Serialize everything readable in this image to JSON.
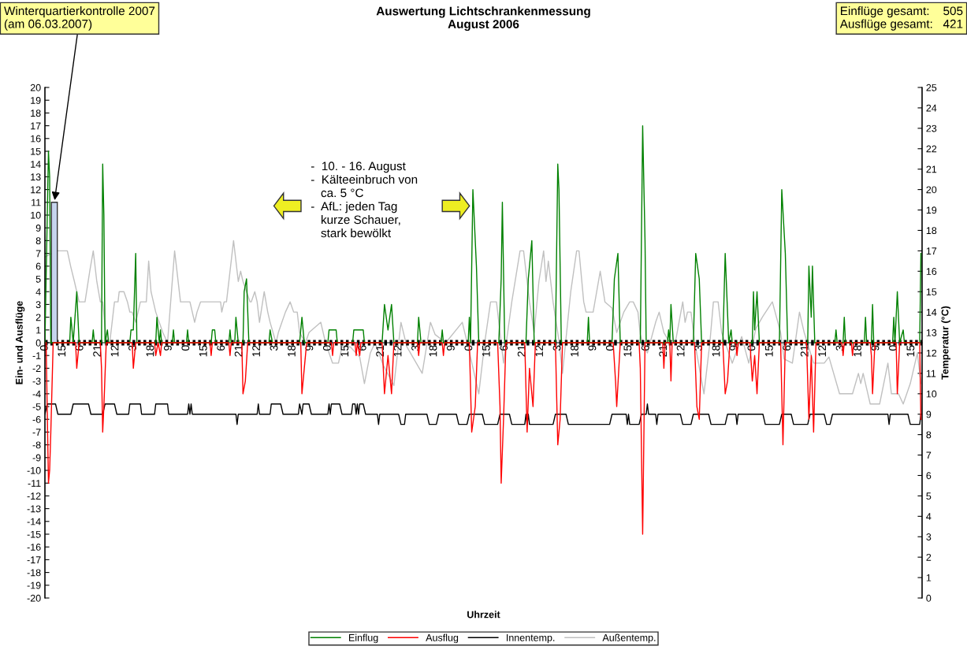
{
  "chart_data": {
    "type": "line",
    "title": "Auswertung Lichtschrankenmessung\nAugust 2006",
    "xlabel": "Uhrzeit",
    "ylabel": "Ein- und Ausflüge",
    "y2label": "Temperatur (°C)",
    "annotations": [
      {
        "text": "Winterquartierkontrolle 2007\n(am 06.03.2007)",
        "x": "2006-08-01T08:00",
        "y": 11
      },
      "Einflüge gesamt:    505\nAusflüge gesamt:   421",
      "-  10. - 16. August\n-  Kälteeinbruch von\n   ca. 5 °C\n-  AfL: jeden Tag\n   kurze Schauer,\n   stark bewölkt"
    ],
    "series": [
      {
        "name": "Einflug",
        "color": "#008000",
        "x": [
          "2006-08-01T00:00",
          "2006-08-01T03:00",
          "2006-08-01T04:00",
          "2006-08-01T05:00",
          "2006-08-01T21:00",
          "2006-08-01T22:00",
          "2006-08-02T00:00",
          "2006-08-02T03:00",
          "2006-08-02T05:00",
          "2006-08-02T16:00",
          "2006-08-02T17:00",
          "2006-08-02T18:00",
          "2006-08-03T00:00",
          "2006-08-03T01:00",
          "2006-08-03T02:00",
          "2006-08-03T03:00",
          "2006-08-03T05:00",
          "2006-08-03T06:00",
          "2006-08-04T00:00",
          "2006-08-04T01:00",
          "2006-08-04T03:00",
          "2006-08-04T05:00",
          "2006-08-04T06:00",
          "2006-08-04T22:00",
          "2006-08-04T23:00",
          "2006-08-05T01:00",
          "2006-08-05T02:00",
          "2006-08-05T03:00",
          "2006-08-05T12:00",
          "2006-08-05T13:00",
          "2006-08-05T14:00",
          "2006-08-06T00:00",
          "2006-08-06T01:00",
          "2006-08-06T02:00",
          "2006-08-06T21:00",
          "2006-08-06T22:00",
          "2006-08-07T00:00",
          "2006-08-07T01:00",
          "2006-08-07T12:00",
          "2006-08-07T13:00",
          "2006-08-07T14:00",
          "2006-08-07T17:00",
          "2006-08-07T18:00",
          "2006-08-07T20:00",
          "2006-08-08T00:00",
          "2006-08-08T01:00",
          "2006-08-08T03:00",
          "2006-08-08T05:00",
          "2006-08-08T22:00",
          "2006-08-08T23:00",
          "2006-08-09T01:00",
          "2006-08-10T00:00",
          "2006-08-10T02:00",
          "2006-08-10T04:00",
          "2006-08-11T00:00",
          "2006-08-11T01:00",
          "2006-08-11T04:00",
          "2006-08-11T07:00",
          "2006-08-11T08:00",
          "2006-08-11T21:00",
          "2006-08-11T22:00",
          "2006-08-12T02:00",
          "2006-08-12T06:00",
          "2006-08-12T07:00",
          "2006-08-12T22:00",
          "2006-08-13T00:00",
          "2006-08-13T03:00",
          "2006-08-13T06:00",
          "2006-08-13T08:00",
          "2006-08-14T04:00",
          "2006-08-14T05:00",
          "2006-08-14T07:00",
          "2006-08-15T00:00",
          "2006-08-15T01:00",
          "2006-08-15T02:00",
          "2006-08-15T23:00",
          "2006-08-16T00:00",
          "2006-08-16T01:00",
          "2006-08-16T03:00",
          "2006-08-16T06:00",
          "2006-08-16T08:00",
          "2006-08-17T01:00",
          "2006-08-17T03:00",
          "2006-08-17T04:00",
          "2006-08-17T06:00",
          "2006-08-18T00:00",
          "2006-08-18T02:00",
          "2006-08-18T05:00",
          "2006-08-18T07:00",
          "2006-08-19T01:00",
          "2006-08-19T03:00",
          "2006-08-19T04:00",
          "2006-08-19T06:00",
          "2006-08-20T04:00",
          "2006-08-20T05:00",
          "2006-08-20T06:00",
          "2006-08-21T01:00",
          "2006-08-21T03:00",
          "2006-08-21T06:00",
          "2006-08-21T08:00",
          "2006-08-22T01:00",
          "2006-08-22T03:00",
          "2006-08-22T05:00",
          "2006-08-22T06:00",
          "2006-08-23T00:00",
          "2006-08-23T01:00",
          "2006-08-23T02:00",
          "2006-08-23T03:00",
          "2006-08-23T05:00",
          "2006-08-23T22:00",
          "2006-08-24T00:00",
          "2006-08-24T03:00",
          "2006-08-24T05:00",
          "2006-08-24T23:00",
          "2006-08-25T01:00",
          "2006-08-25T04:00",
          "2006-08-25T06:00",
          "2006-08-25T07:00",
          "2006-08-26T00:00",
          "2006-08-26T01:00",
          "2006-08-26T02:00",
          "2006-08-26T04:00",
          "2006-08-26T06:00",
          "2006-08-26T23:00",
          "2006-08-27T01:00",
          "2006-08-27T04:00",
          "2006-08-27T06:00",
          "2006-08-27T23:00",
          "2006-08-28T00:00",
          "2006-08-28T02:00",
          "2006-08-28T03:00",
          "2006-08-28T05:00",
          "2006-08-28T22:00",
          "2006-08-28T23:00",
          "2006-08-29T00:00",
          "2006-08-29T05:00",
          "2006-08-29T06:00",
          "2006-08-29T07:00",
          "2006-08-29T23:00",
          "2006-08-30T00:00",
          "2006-08-30T01:00",
          "2006-08-30T05:00",
          "2006-08-30T06:00",
          "2006-08-30T07:00",
          "2006-08-30T23:00",
          "2006-08-31T00:00",
          "2006-08-31T01:00",
          "2006-08-31T03:00",
          "2006-08-31T05:00",
          "2006-08-31T08:00",
          "2006-08-31T09:00",
          "2006-08-31T22:00",
          "2006-08-31T23:00"
        ],
        "values": [
          0,
          15,
          13,
          0,
          0,
          2,
          0,
          4,
          0,
          0,
          1,
          0,
          0,
          14,
          10,
          0,
          1,
          0,
          0,
          1,
          1,
          7,
          0,
          0,
          2,
          0,
          1,
          0,
          0,
          1,
          0,
          0,
          1,
          0,
          0,
          1,
          1,
          0,
          0,
          1,
          0,
          0,
          2,
          0,
          0,
          4,
          5,
          0,
          0,
          1,
          0,
          0,
          2,
          0,
          0,
          1,
          1,
          1,
          0,
          0,
          1,
          1,
          1,
          0,
          0,
          3,
          1,
          3,
          0,
          0,
          2,
          0,
          0,
          1,
          0,
          0,
          2,
          0,
          12,
          6,
          0,
          0,
          5,
          11,
          0,
          0,
          5,
          8,
          0,
          0,
          14,
          12,
          0,
          0,
          2,
          0,
          0,
          5,
          7,
          0,
          0,
          17,
          8,
          0,
          0,
          1,
          0,
          3,
          0,
          0,
          7,
          5,
          0,
          0,
          7,
          0,
          1,
          0,
          0,
          4,
          1,
          4,
          0,
          0,
          12,
          7,
          0,
          0,
          6,
          2,
          6,
          0,
          0,
          1,
          0,
          0,
          2,
          0,
          0,
          2,
          0,
          0,
          3,
          0,
          0,
          2,
          0,
          4,
          0,
          1,
          0,
          0,
          7
        ]
      },
      {
        "name": "Ausflug",
        "color": "#ff0000",
        "x": [
          "2006-08-01T01:00",
          "2006-08-01T03:00",
          "2006-08-01T04:00",
          "2006-08-01T05:00",
          "2006-08-01T07:00",
          "2006-08-02T02:00",
          "2006-08-02T03:00",
          "2006-08-02T05:00",
          "2006-08-02T23:00",
          "2006-08-03T00:00",
          "2006-08-03T01:00",
          "2006-08-03T02:00",
          "2006-08-03T04:00",
          "2006-08-04T02:00",
          "2006-08-04T03:00",
          "2006-08-04T05:00",
          "2006-08-04T21:00",
          "2006-08-04T22:00",
          "2006-08-05T00:00",
          "2006-08-05T02:00",
          "2006-08-05T03:00",
          "2006-08-06T20:00",
          "2006-08-06T21:00",
          "2006-08-06T22:00",
          "2006-08-07T12:00",
          "2006-08-07T13:00",
          "2006-08-07T14:00",
          "2006-08-07T23:00",
          "2006-08-08T00:00",
          "2006-08-08T02:00",
          "2006-08-08T04:00",
          "2006-08-10T01:00",
          "2006-08-10T02:00",
          "2006-08-10T04:00",
          "2006-08-10T06:00",
          "2006-08-11T03:00",
          "2006-08-11T04:00",
          "2006-08-11T05:00",
          "2006-08-11T23:00",
          "2006-08-12T00:00",
          "2006-08-12T01:00",
          "2006-08-12T03:00",
          "2006-08-12T04:00",
          "2006-08-12T22:00",
          "2006-08-13T00:00",
          "2006-08-13T03:00",
          "2006-08-13T06:00",
          "2006-08-13T08:00",
          "2006-08-14T04:00",
          "2006-08-14T05:00",
          "2006-08-14T06:00",
          "2006-08-15T01:00",
          "2006-08-15T02:00",
          "2006-08-15T03:00",
          "2006-08-16T00:00",
          "2006-08-16T02:00",
          "2006-08-16T05:00",
          "2006-08-16T07:00",
          "2006-08-17T00:00",
          "2006-08-17T02:00",
          "2006-08-17T03:00",
          "2006-08-17T05:00",
          "2006-08-17T07:00",
          "2006-08-17T23:00",
          "2006-08-18T01:00",
          "2006-08-18T03:00",
          "2006-08-18T06:00",
          "2006-08-18T08:00",
          "2006-08-19T01:00",
          "2006-08-19T03:00",
          "2006-08-19T05:00",
          "2006-08-19T07:00",
          "2006-08-21T02:00",
          "2006-08-21T04:00",
          "2006-08-21T05:00",
          "2006-08-21T08:00",
          "2006-08-22T00:00",
          "2006-08-22T01:00",
          "2006-08-22T03:00",
          "2006-08-22T05:00",
          "2006-08-22T20:00",
          "2006-08-22T21:00",
          "2006-08-22T22:00",
          "2006-08-23T02:00",
          "2006-08-23T03:00",
          "2006-08-23T04:00",
          "2006-08-23T23:00",
          "2006-08-24T01:00",
          "2006-08-24T03:00",
          "2006-08-24T05:00",
          "2006-08-24T23:00",
          "2006-08-25T01:00",
          "2006-08-25T03:00",
          "2006-08-25T05:00",
          "2006-08-25T10:00",
          "2006-08-25T11:00",
          "2006-08-25T12:00",
          "2006-08-25T22:00",
          "2006-08-26T00:00",
          "2006-08-26T02:00",
          "2006-08-26T04:00",
          "2006-08-26T06:00",
          "2006-08-27T00:00",
          "2006-08-27T02:00",
          "2006-08-27T04:00",
          "2006-08-27T22:00",
          "2006-08-28T00:00",
          "2006-08-28T02:00",
          "2006-08-28T04:00",
          "2006-08-28T06:00",
          "2006-08-29T04:00",
          "2006-08-29T05:00",
          "2006-08-29T06:00",
          "2006-08-29T12:00",
          "2006-08-29T13:00",
          "2006-08-29T14:00",
          "2006-08-30T04:00",
          "2006-08-30T05:00",
          "2006-08-30T06:00",
          "2006-08-30T08:00",
          "2006-08-31T02:00",
          "2006-08-31T03:00",
          "2006-08-31T05:00",
          "2006-08-31T22:00",
          "2006-08-31T23:00"
        ],
        "values": [
          0,
          -11,
          -10,
          -7,
          0,
          0,
          -2,
          0,
          0,
          -2,
          -7,
          -5,
          0,
          0,
          -2,
          0,
          0,
          -1,
          0,
          -1,
          0,
          0,
          -1,
          0,
          0,
          -1,
          0,
          0,
          -4,
          -3,
          0,
          0,
          -4,
          -2,
          0,
          0,
          -1,
          0,
          0,
          -1,
          0,
          -1,
          0,
          0,
          -4,
          -1,
          -4,
          0,
          0,
          -1,
          0,
          0,
          -1,
          0,
          0,
          -7,
          -5,
          0,
          0,
          -5,
          -11,
          -6,
          0,
          0,
          -7,
          -2,
          -5,
          0,
          0,
          -8,
          -6,
          0,
          0,
          -3,
          -5,
          0,
          0,
          -2,
          -15,
          0,
          0,
          -2,
          0,
          0,
          -3,
          0,
          0,
          -5,
          -6,
          0,
          0,
          -4,
          -3,
          0,
          0,
          -1,
          0,
          0,
          -3,
          -1,
          -4,
          0,
          0,
          -8,
          0,
          0,
          -6,
          -1,
          -7,
          0,
          0,
          -1,
          0,
          0,
          -1,
          0,
          0,
          -1,
          -4,
          0,
          0,
          -4,
          0,
          0,
          -6
        ]
      },
      {
        "name": "Innentemp.",
        "color": "#000000",
        "axis": "y2",
        "x": [
          "2006-08-01T00:00",
          "2006-08-01T02:00",
          "2006-08-01T09:00",
          "2006-08-01T11:00",
          "2006-08-01T22:00",
          "2006-08-02T00:00",
          "2006-08-02T13:00",
          "2006-08-02T15:00",
          "2006-08-03T01:00",
          "2006-08-03T03:00",
          "2006-08-03T11:00",
          "2006-08-03T13:00",
          "2006-08-03T23:00",
          "2006-08-04T00:00",
          "2006-08-04T09:00",
          "2006-08-04T10:00",
          "2006-08-04T21:00",
          "2006-08-04T22:00",
          "2006-08-05T08:00",
          "2006-08-05T09:00",
          "2006-08-06T01:00",
          "2006-08-06T02:00",
          "2006-08-06T03:00",
          "2006-08-06T04:00",
          "2006-08-06T05:00",
          "2006-08-07T18:00",
          "2006-08-07T19:00",
          "2006-08-07T20:00",
          "2006-08-08T12:00",
          "2006-08-08T13:00",
          "2006-08-08T14:00",
          "2006-08-08T23:00",
          "2006-08-09T00:00",
          "2006-08-09T08:00",
          "2006-08-09T10:00",
          "2006-08-09T23:00",
          "2006-08-10T00:00",
          "2006-08-10T02:00",
          "2006-08-10T03:00",
          "2006-08-10T08:00",
          "2006-08-10T10:00",
          "2006-08-11T00:00",
          "2006-08-11T01:00",
          "2006-08-11T02:00",
          "2006-08-11T03:00",
          "2006-08-11T10:00",
          "2006-08-11T12:00",
          "2006-08-11T20:00",
          "2006-08-11T21:00",
          "2006-08-11T23:00",
          "2006-08-12T00:00",
          "2006-08-12T01:00",
          "2006-08-12T02:00",
          "2006-08-12T03:00",
          "2006-08-12T06:00",
          "2006-08-12T08:00",
          "2006-08-12T18:00",
          "2006-08-12T19:00",
          "2006-08-12T20:00",
          "2006-08-13T12:00",
          "2006-08-13T14:00",
          "2006-08-13T17:00",
          "2006-08-13T18:00",
          "2006-08-14T12:00",
          "2006-08-14T14:00",
          "2006-08-14T20:00",
          "2006-08-14T22:00",
          "2006-08-15T13:00",
          "2006-08-15T15:00",
          "2006-08-15T22:00",
          "2006-08-16T00:00",
          "2006-08-16T11:00",
          "2006-08-16T13:00",
          "2006-08-17T00:00",
          "2006-08-17T02:00",
          "2006-08-17T10:00",
          "2006-08-17T12:00",
          "2006-08-17T23:00",
          "2006-08-18T00:00",
          "2006-08-18T01:00",
          "2006-08-18T02:00",
          "2006-08-18T03:00",
          "2006-08-18T23:00",
          "2006-08-19T01:00",
          "2006-08-19T10:00",
          "2006-08-19T12:00",
          "2006-08-20T23:00",
          "2006-08-21T01:00",
          "2006-08-21T13:00",
          "2006-08-21T14:00",
          "2006-08-21T15:00",
          "2006-08-21T16:00",
          "2006-08-22T00:00",
          "2006-08-22T02:00",
          "2006-08-22T06:00",
          "2006-08-22T07:00",
          "2006-08-22T08:00",
          "2006-08-22T14:00",
          "2006-08-22T15:00",
          "2006-08-22T16:00",
          "2006-08-23T11:00",
          "2006-08-23T13:00",
          "2006-08-23T20:00",
          "2006-08-23T22:00",
          "2006-08-24T11:00",
          "2006-08-24T13:00",
          "2006-08-25T01:00",
          "2006-08-25T03:00",
          "2006-08-25T10:00",
          "2006-08-25T11:00",
          "2006-08-25T12:00",
          "2006-08-26T09:00",
          "2006-08-26T11:00",
          "2006-08-26T23:00",
          "2006-08-27T01:00",
          "2006-08-27T09:00",
          "2006-08-27T11:00",
          "2006-08-27T23:00",
          "2006-08-28T01:00",
          "2006-08-28T13:00",
          "2006-08-28T15:00",
          "2006-08-28T18:00",
          "2006-08-28T20:00",
          "2006-08-30T19:00",
          "2006-08-30T20:00",
          "2006-08-30T21:00",
          "2006-08-31T12:00",
          "2006-08-31T14:00",
          "2006-08-31T22:00",
          "2006-08-31T23:00"
        ],
        "values": [
          9,
          9.5,
          9.5,
          9,
          9,
          9.5,
          9.5,
          9,
          9,
          9.5,
          9.5,
          9,
          9,
          9.5,
          9.5,
          9,
          9,
          9.5,
          9.5,
          9,
          9,
          9.5,
          9,
          9.5,
          9,
          9,
          8.5,
          9,
          9,
          9.5,
          9,
          9,
          9.5,
          9.5,
          9,
          9,
          9.5,
          9,
          9.5,
          9.5,
          9,
          9,
          9.5,
          9,
          9.5,
          9.5,
          9,
          9,
          9.5,
          9.5,
          9,
          9.5,
          9,
          9.5,
          9.5,
          9,
          9,
          8.5,
          9,
          9,
          8.5,
          8.5,
          9,
          9,
          8.5,
          8.5,
          9,
          9,
          8.5,
          8.5,
          9,
          9,
          8.5,
          8.5,
          9,
          9,
          8.5,
          8.5,
          9,
          8.5,
          9,
          8.5,
          8.5,
          9,
          9,
          8.5,
          8.5,
          9,
          9,
          8.5,
          9,
          8.5,
          8.5,
          9,
          9,
          9.5,
          9,
          9,
          8.5,
          9,
          9,
          8.5,
          8.5,
          9,
          9,
          8.5,
          8.5,
          9,
          9,
          8.5,
          9,
          9,
          8.5,
          8.5,
          9,
          9,
          8.5,
          8.5,
          9,
          9,
          8.5,
          8.5,
          9,
          9,
          8.5,
          9,
          9,
          8.5,
          8.5,
          9
        ]
      },
      {
        "name": "Außentemp.",
        "color": "#c0c0c0",
        "axis": "y2",
        "x": [
          "2006-08-01T00:00",
          "2006-08-01T10:00",
          "2006-08-01T19:00",
          "2006-08-01T22:00",
          "2006-08-02T01:00",
          "2006-08-02T05:00",
          "2006-08-02T10:00",
          "2006-08-02T14:00",
          "2006-08-02T17:00",
          "2006-08-02T20:00",
          "2006-08-02T23:00",
          "2006-08-03T01:00",
          "2006-08-03T04:00",
          "2006-08-03T07:00",
          "2006-08-03T11:00",
          "2006-08-03T14:00",
          "2006-08-03T15:00",
          "2006-08-03T19:00",
          "2006-08-03T22:00",
          "2006-08-04T00:00",
          "2006-08-04T02:00",
          "2006-08-04T05:00",
          "2006-08-04T09:00",
          "2006-08-04T14:00",
          "2006-08-04T16:00",
          "2006-08-04T18:00",
          "2006-08-04T20:00",
          "2006-08-04T22:00",
          "2006-08-05T04:00",
          "2006-08-05T08:00",
          "2006-08-05T14:00",
          "2006-08-05T19:00",
          "2006-08-06T03:00",
          "2006-08-06T07:00",
          "2006-08-06T09:00",
          "2006-08-06T12:00",
          "2006-08-07T05:00",
          "2006-08-07T06:00",
          "2006-08-07T08:00",
          "2006-08-07T10:00",
          "2006-08-07T16:00",
          "2006-08-07T20:00",
          "2006-08-07T22:00",
          "2006-08-08T00:00",
          "2006-08-08T03:00",
          "2006-08-08T06:00",
          "2006-08-08T07:00",
          "2006-08-08T10:00",
          "2006-08-08T12:00",
          "2006-08-08T14:00",
          "2006-08-08T18:00",
          "2006-08-08T21:00",
          "2006-08-08T23:00",
          "2006-08-09T04:00",
          "2006-08-09T06:00",
          "2006-08-09T09:00",
          "2006-08-09T12:00",
          "2006-08-09T16:00",
          "2006-08-09T19:00",
          "2006-08-09T22:00",
          "2006-08-10T00:00",
          "2006-08-10T05:00",
          "2006-08-10T08:00",
          "2006-08-10T18:00",
          "2006-08-10T20:00",
          "2006-08-10T22:00",
          "2006-08-11T04:00",
          "2006-08-11T09:00",
          "2006-08-11T12:00",
          "2006-08-11T19:00",
          "2006-08-12T03:00",
          "2006-08-12T07:00",
          "2006-08-12T12:00",
          "2006-08-12T16:00",
          "2006-08-12T23:00",
          "2006-08-13T08:00",
          "2006-08-13T14:00",
          "2006-08-13T19:00",
          "2006-08-14T08:00",
          "2006-08-14T15:00",
          "2006-08-14T19:00",
          "2006-08-15T04:00",
          "2006-08-15T18:00",
          "2006-08-15T23:00",
          "2006-08-16T08:00",
          "2006-08-16T13:00",
          "2006-08-16T18:00",
          "2006-08-16T23:00",
          "2006-08-17T05:00",
          "2006-08-17T12:00",
          "2006-08-17T19:00",
          "2006-08-17T22:00",
          "2006-08-18T03:00",
          "2006-08-18T07:00",
          "2006-08-18T11:00",
          "2006-08-18T15:00",
          "2006-08-18T17:00",
          "2006-08-18T19:00",
          "2006-08-18T23:00",
          "2006-08-19T04:00",
          "2006-08-19T07:00",
          "2006-08-19T14:00",
          "2006-08-19T19:00",
          "2006-08-19T21:00",
          "2006-08-20T01:00",
          "2006-08-20T03:00",
          "2006-08-20T09:00",
          "2006-08-20T15:00",
          "2006-08-20T19:00",
          "2006-08-21T01:00",
          "2006-08-21T05:00",
          "2006-08-21T11:00",
          "2006-08-21T16:00",
          "2006-08-21T19:00",
          "2006-08-21T23:00",
          "2006-08-22T01:00",
          "2006-08-22T04:00",
          "2006-08-22T07:00",
          "2006-08-22T14:00",
          "2006-08-22T17:00",
          "2006-08-22T21:00",
          "2006-08-23T01:00",
          "2006-08-23T07:00",
          "2006-08-23T13:00",
          "2006-08-23T15:00",
          "2006-08-23T17:00",
          "2006-08-23T20:00",
          "2006-08-23T23:00",
          "2006-08-24T07:00",
          "2006-08-24T12:00",
          "2006-08-24T15:00",
          "2006-08-24T19:00",
          "2006-08-24T22:00",
          "2006-08-25T07:00",
          "2006-08-25T15:00",
          "2006-08-25T21:00",
          "2006-08-26T03:00",
          "2006-08-26T09:00",
          "2006-08-26T17:00",
          "2006-08-27T00:00",
          "2006-08-27T03:00",
          "2006-08-27T10:00",
          "2006-08-27T16:00",
          "2006-08-27T20:00",
          "2006-08-28T04:00",
          "2006-08-28T13:00",
          "2006-08-28T17:00",
          "2006-08-29T02:00",
          "2006-08-29T13:00",
          "2006-08-29T18:00",
          "2006-08-29T20:00",
          "2006-08-29T22:00",
          "2006-08-30T04:00",
          "2006-08-30T12:00",
          "2006-08-30T19:00",
          "2006-08-30T22:00",
          "2006-08-31T04:00",
          "2006-08-31T08:00",
          "2006-08-31T14:00",
          "2006-08-31T20:00",
          "2006-08-31T23:00"
        ],
        "values": [
          16.7,
          17,
          17,
          16.2,
          15.5,
          14.5,
          14.5,
          16,
          17,
          15.5,
          14.5,
          14.5,
          12.7,
          12.5,
          14.5,
          14.5,
          15,
          15,
          14.5,
          14,
          14,
          13.5,
          14.5,
          14.5,
          16.5,
          15,
          14.5,
          14,
          13,
          12.5,
          17,
          14.5,
          14.5,
          13.5,
          14,
          14.5,
          14.5,
          14,
          14.5,
          14.5,
          17.5,
          15.5,
          16,
          15.5,
          15,
          14.5,
          14.5,
          15,
          14.5,
          13.5,
          15,
          14,
          13.5,
          12.5,
          13,
          13.5,
          14,
          14.5,
          14,
          14,
          13,
          12.5,
          13,
          13.5,
          13,
          12.5,
          11.5,
          11.5,
          12.3,
          12.3,
          11.8,
          10.5,
          12,
          12.5,
          11.4,
          10.4,
          13.5,
          12.3,
          11,
          13.5,
          12.9,
          12.5,
          13.5,
          12.3,
          10,
          12.5,
          14.5,
          14.5,
          11.5,
          14.5,
          17,
          17,
          14.5,
          13,
          15.5,
          17,
          15.5,
          16.5,
          14.5,
          12.6,
          11,
          15,
          17,
          17,
          14.5,
          14,
          14,
          16,
          14.5,
          14.2,
          13,
          14,
          14.5,
          14.5,
          14,
          12.9,
          12.3,
          12,
          13.5,
          14,
          13,
          12.6,
          12.6,
          14.5,
          13.5,
          14,
          14,
          12.6,
          10,
          12.5,
          14.5,
          14.5,
          13,
          11.5,
          12.8,
          11.5,
          13.2,
          13.8,
          14.5,
          13,
          11.7,
          11.5,
          14,
          13,
          11.5,
          11.5,
          11.8,
          10,
          10,
          11,
          10.5,
          11,
          9.5,
          9.5,
          11.5,
          10,
          10,
          9.5,
          10.5,
          12,
          10.5
        ]
      },
      {
        "color": "#c6d4ee",
        "type": "bar",
        "x": [
          "2006-08-01T08:00"
        ],
        "values": [
          11
        ]
      }
    ],
    "ref_lines": [
      {
        "axis": "y",
        "value": 0,
        "color": "#000000",
        "line_style": "dotted"
      }
    ],
    "xlim": [
      "2006-08-01T00:00",
      "2006-09-01T00:00"
    ],
    "xticks": [
      {
        "value": "2006-08-01T00:00",
        "label": "0"
      },
      {
        "value": "2006-08-01T15:00",
        "label": "15"
      },
      {
        "value": "2006-08-02T06:00",
        "label": "6"
      },
      {
        "value": "2006-08-02T21:00",
        "label": "21"
      },
      {
        "value": "2006-08-03T12:00",
        "label": "12"
      },
      {
        "value": "2006-08-04T03:00",
        "label": "3"
      },
      {
        "value": "2006-08-04T18:00",
        "label": "18"
      },
      {
        "value": "2006-08-05T09:00",
        "label": "9"
      },
      {
        "value": "2006-08-06T00:00",
        "label": "0"
      },
      {
        "value": "2006-08-06T15:00",
        "label": "15"
      },
      {
        "value": "2006-08-07T06:00",
        "label": "6"
      },
      {
        "value": "2006-08-07T21:00",
        "label": "21"
      },
      {
        "value": "2006-08-08T12:00",
        "label": "12"
      },
      {
        "value": "2006-08-09T03:00",
        "label": "3"
      },
      {
        "value": "2006-08-09T18:00",
        "label": "18"
      },
      {
        "value": "2006-08-10T09:00",
        "label": "9"
      },
      {
        "value": "2006-08-11T00:00",
        "label": "0"
      },
      {
        "value": "2006-08-11T15:00",
        "label": "15"
      },
      {
        "value": "2006-08-12T06:00",
        "label": "6"
      },
      {
        "value": "2006-08-12T21:00",
        "label": "21"
      },
      {
        "value": "2006-08-13T12:00",
        "label": "12"
      },
      {
        "value": "2006-08-14T03:00",
        "label": "3"
      },
      {
        "value": "2006-08-14T18:00",
        "label": "18"
      },
      {
        "value": "2006-08-15T09:00",
        "label": "9"
      },
      {
        "value": "2006-08-16T00:00",
        "label": "0"
      },
      {
        "value": "2006-08-16T15:00",
        "label": "15"
      },
      {
        "value": "2006-08-17T06:00",
        "label": "6"
      },
      {
        "value": "2006-08-17T21:00",
        "label": "21"
      },
      {
        "value": "2006-08-18T12:00",
        "label": "12"
      },
      {
        "value": "2006-08-19T03:00",
        "label": "3"
      },
      {
        "value": "2006-08-19T18:00",
        "label": "18"
      },
      {
        "value": "2006-08-20T09:00",
        "label": "9"
      },
      {
        "value": "2006-08-21T00:00",
        "label": "0"
      },
      {
        "value": "2006-08-21T15:00",
        "label": "15"
      },
      {
        "value": "2006-08-22T06:00",
        "label": "6"
      },
      {
        "value": "2006-08-22T21:00",
        "label": "21"
      },
      {
        "value": "2006-08-23T12:00",
        "label": "12"
      },
      {
        "value": "2006-08-24T03:00",
        "label": "3"
      },
      {
        "value": "2006-08-24T18:00",
        "label": "18"
      },
      {
        "value": "2006-08-25T09:00",
        "label": "9"
      },
      {
        "value": "2006-08-26T00:00",
        "label": "0"
      },
      {
        "value": "2006-08-26T15:00",
        "label": "15"
      },
      {
        "value": "2006-08-27T06:00",
        "label": "6"
      },
      {
        "value": "2006-08-27T21:00",
        "label": "21"
      },
      {
        "value": "2006-08-28T12:00",
        "label": "12"
      },
      {
        "value": "2006-08-29T03:00",
        "label": "3"
      },
      {
        "value": "2006-08-29T18:00",
        "label": "18"
      },
      {
        "value": "2006-08-30T09:00",
        "label": "9"
      },
      {
        "value": "2006-08-31T00:00",
        "label": "0"
      },
      {
        "value": "2006-08-31T15:00",
        "label": "15"
      }
    ],
    "ylim": [
      -20,
      20
    ],
    "yticks": [
      -20,
      -19,
      -18,
      -17,
      -16,
      -15,
      -14,
      -13,
      -12,
      -11,
      -10,
      -9,
      -8,
      -7,
      -6,
      -5,
      -4,
      -3,
      -2,
      -1,
      0,
      1,
      2,
      3,
      4,
      5,
      6,
      7,
      8,
      9,
      10,
      11,
      12,
      13,
      14,
      15,
      16,
      17,
      18,
      19,
      20
    ],
    "y2lim": [
      0,
      25
    ],
    "y2ticks": [
      0,
      1,
      2,
      3,
      4,
      5,
      6,
      7,
      8,
      9,
      10,
      11,
      12,
      13,
      14,
      15,
      16,
      17,
      18,
      19,
      20,
      21,
      22,
      23,
      24,
      25
    ],
    "legend": "bottom",
    "grid": false
  }
}
